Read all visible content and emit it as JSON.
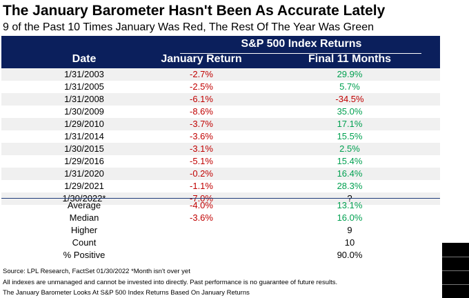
{
  "title": "The January Barometer Hasn't Been As Accurate Lately",
  "subtitle": "9 of the Past 10 Times January Was Red, The Rest Of The Year Was Green",
  "header": {
    "group_label": "S&P 500 Index Returns",
    "col_date": "Date",
    "col_january": "January Return",
    "col_final": "Final 11 Months"
  },
  "rows": [
    {
      "date": "1/31/2003",
      "jan": "-2.7%",
      "final": "29.9%"
    },
    {
      "date": "1/31/2005",
      "jan": "-2.5%",
      "final": "5.7%"
    },
    {
      "date": "1/31/2008",
      "jan": "-6.1%",
      "final": "-34.5%"
    },
    {
      "date": "1/30/2009",
      "jan": "-8.6%",
      "final": "35.0%"
    },
    {
      "date": "1/29/2010",
      "jan": "-3.7%",
      "final": "17.1%"
    },
    {
      "date": "1/31/2014",
      "jan": "-3.6%",
      "final": "15.5%"
    },
    {
      "date": "1/30/2015",
      "jan": "-3.1%",
      "final": "2.5%"
    },
    {
      "date": "1/29/2016",
      "jan": "-5.1%",
      "final": "15.4%"
    },
    {
      "date": "1/31/2020",
      "jan": "-0.2%",
      "final": "16.4%"
    },
    {
      "date": "1/29/2021",
      "jan": "-1.1%",
      "final": "28.3%"
    },
    {
      "date": "1/30/2022*",
      "jan": "-7.0%",
      "final": "?"
    }
  ],
  "summary": [
    {
      "label": "Average",
      "jan": "-4.0%",
      "final": "13.1%"
    },
    {
      "label": "Median",
      "jan": "-3.6%",
      "final": "16.0%"
    },
    {
      "label": "Higher",
      "jan": "",
      "final": "9"
    },
    {
      "label": "Count",
      "jan": "",
      "final": "10"
    },
    {
      "label": "% Positive",
      "jan": "",
      "final": "90.0%"
    }
  ],
  "footer": {
    "source": "Source: LPL Research, FactSet 01/30/2022  *Month isn't over yet",
    "disclaimer": "All indexes are unmanaged and cannot be invested into directly. Past performance is no guarantee of future results.",
    "note": "The January Barometer Looks At S&P 500 Index Returns Based On January Returns"
  },
  "colors": {
    "header_bg": "#0b1f5c",
    "negative": "#c00000",
    "positive": "#00a050",
    "row_alt": "#f0f0f0"
  }
}
